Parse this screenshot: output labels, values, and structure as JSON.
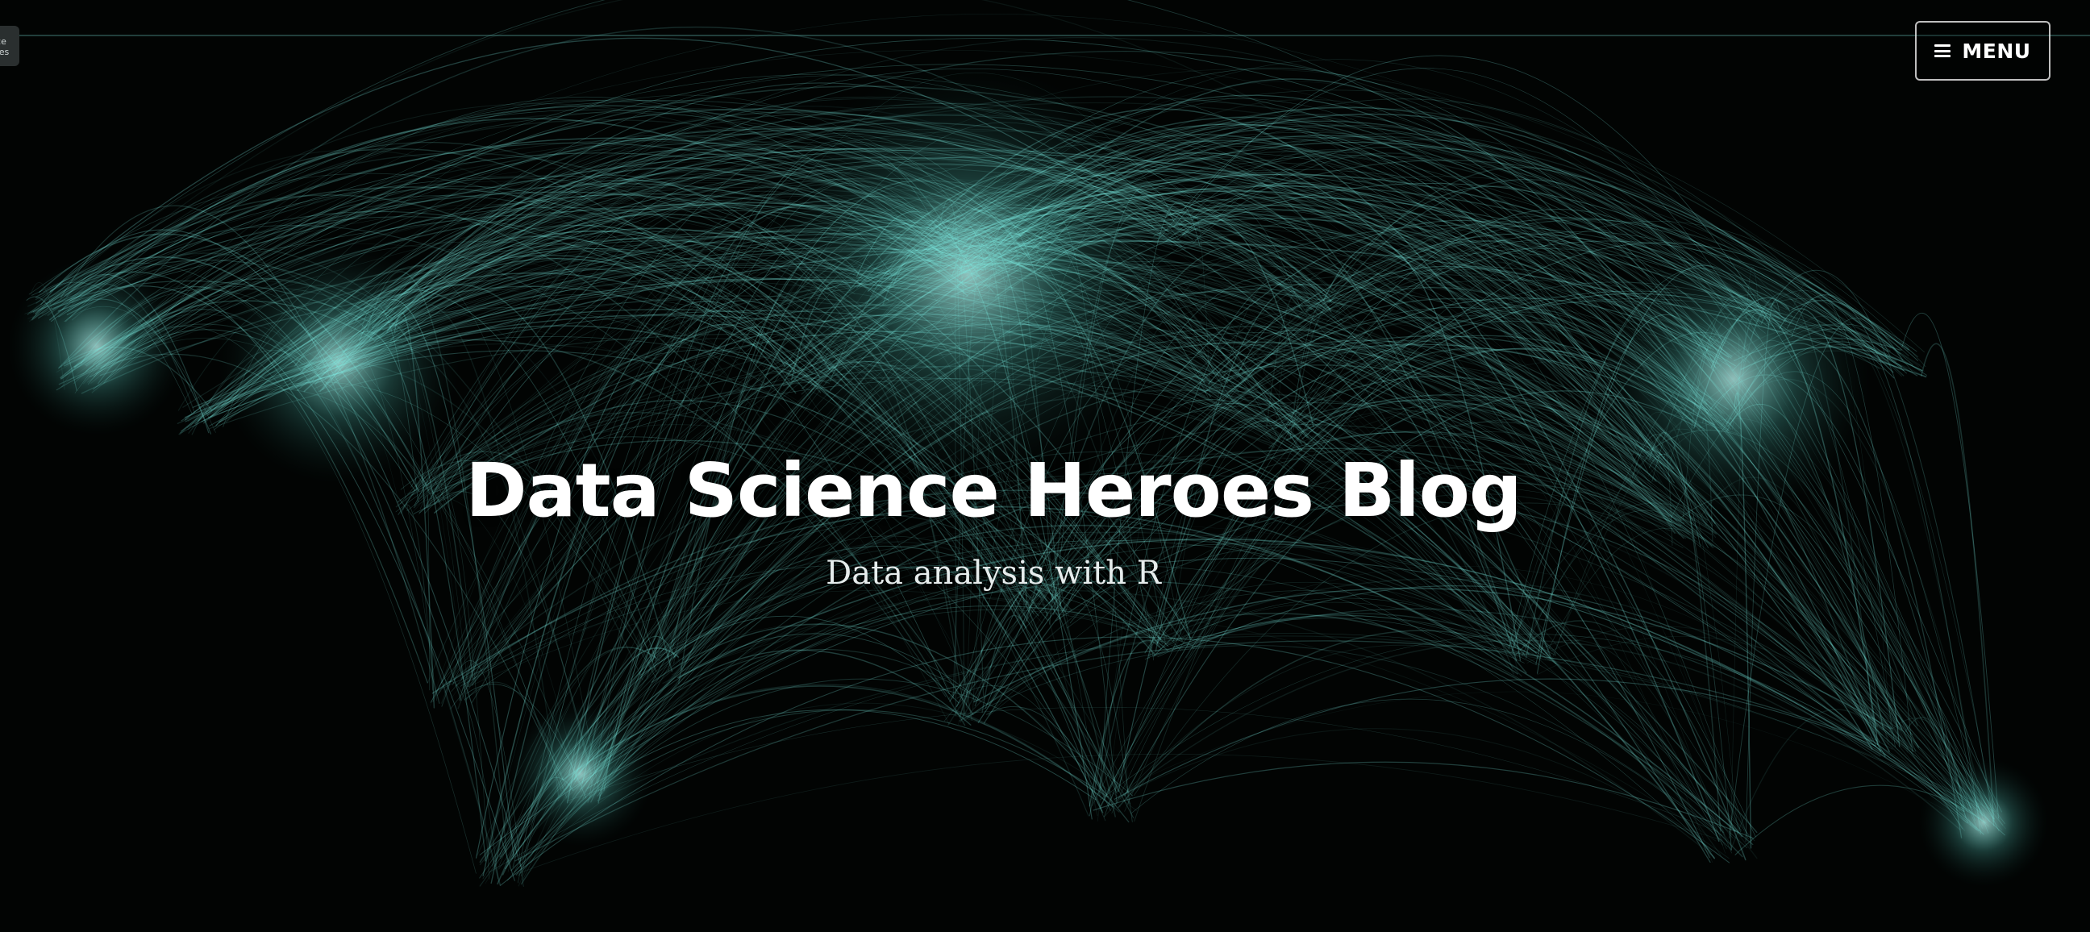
{
  "logo": {
    "lines": [
      "e",
      "ice",
      "oes"
    ]
  },
  "menu": {
    "label": "MENU"
  },
  "hero": {
    "title": "Data Science Heroes Blog",
    "subtitle": "Data analysis with R"
  },
  "colors": {
    "accent": "#7ff0e6",
    "background": "#020403"
  }
}
